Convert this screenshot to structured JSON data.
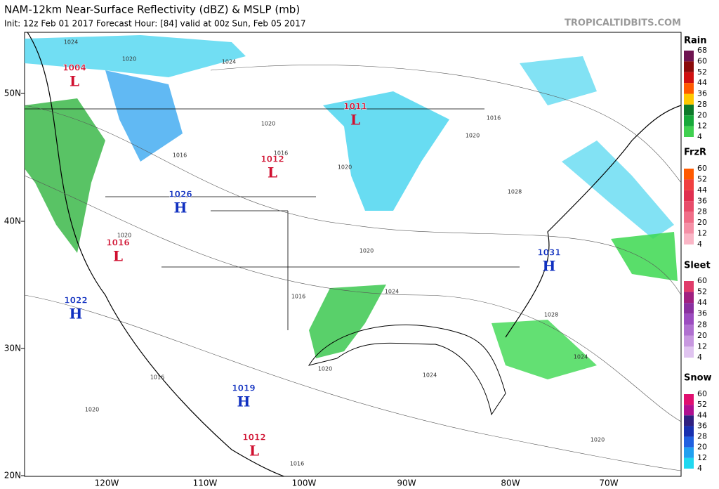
{
  "header": {
    "title": "NAM-12km Near-Surface Reflectivity (dBZ) & MSLP (mb)",
    "subtitle": "Init: 12z Feb 01 2017   Forecast Hour: [84]   valid at 00z Sun, Feb 05 2017",
    "site": "TROPICALTIDBITS.COM"
  },
  "lat_labels": [
    "50N",
    "40N",
    "30N",
    "20N"
  ],
  "lon_labels": [
    "120W",
    "110W",
    "100W",
    "90W",
    "80W",
    "70W"
  ],
  "centers": [
    {
      "pressure": "1004",
      "kind": "L"
    },
    {
      "pressure": "1011",
      "kind": "L"
    },
    {
      "pressure": "1012",
      "kind": "L"
    },
    {
      "pressure": "1026",
      "kind": "H"
    },
    {
      "pressure": "1016",
      "kind": "L"
    },
    {
      "pressure": "1022",
      "kind": "H"
    },
    {
      "pressure": "1031",
      "kind": "H"
    },
    {
      "pressure": "1019",
      "kind": "H"
    },
    {
      "pressure": "1012",
      "kind": "L"
    }
  ],
  "isobar_labels": [
    "1024",
    "1020",
    "1024",
    "1020",
    "1016",
    "1016",
    "1020",
    "1020",
    "1016",
    "1028",
    "1020",
    "1024",
    "1016",
    "1028",
    "1024",
    "1024",
    "1020",
    "1020",
    "1016",
    "1020",
    "1016",
    "1020"
  ],
  "legend": [
    {
      "name": "Rain",
      "ticks": [
        68,
        60,
        52,
        44,
        36,
        28,
        20,
        12,
        4
      ],
      "colors": [
        "#6e1450",
        "#8b0a0a",
        "#d01010",
        "#ff5a00",
        "#ffc800",
        "#0e7a2a",
        "#18a83a",
        "#40d050"
      ]
    },
    {
      "name": "FrzR",
      "ticks": [
        60,
        52,
        44,
        36,
        28,
        20,
        12,
        4
      ],
      "colors": [
        "#ff5a00",
        "#f04040",
        "#e03050",
        "#e84c6a",
        "#f06e88",
        "#f590a6",
        "#fab6c6"
      ]
    },
    {
      "name": "Sleet",
      "ticks": [
        60,
        52,
        44,
        36,
        28,
        20,
        12,
        4
      ],
      "colors": [
        "#e03c6a",
        "#a02080",
        "#8a30a0",
        "#9c4cc0",
        "#b070d0",
        "#c898e0",
        "#e0c4f0"
      ]
    },
    {
      "name": "Snow",
      "ticks": [
        60,
        52,
        44,
        36,
        28,
        20,
        12,
        4
      ],
      "colors": [
        "#e01070",
        "#b01090",
        "#302080",
        "#1830b0",
        "#2060e0",
        "#20a0f0",
        "#20d8f0"
      ]
    }
  ]
}
